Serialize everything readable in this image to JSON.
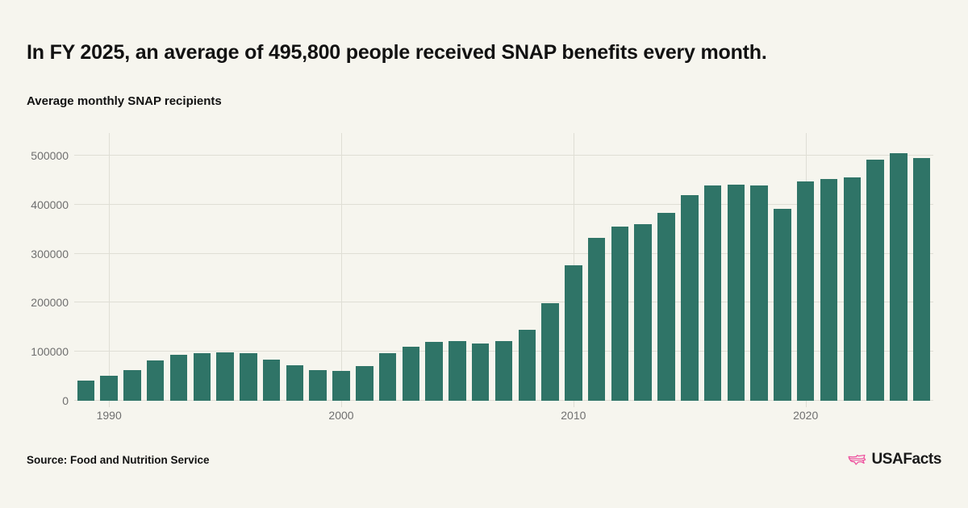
{
  "header": {
    "title": "In FY 2025, an average of 495,800 people received SNAP benefits every month.",
    "subtitle": "Average monthly SNAP recipients"
  },
  "footer": {
    "source": "Source: Food and Nutrition Service",
    "brand_text": "USAFacts",
    "brand_logo_icon": "usa-map-icon"
  },
  "colors": {
    "background": "#F6F5EE",
    "bar": "#2F7467",
    "grid": "#DFDED5",
    "axis_text": "#6F6F6F",
    "text": "#121212",
    "brand_pink": "#ED4F9D"
  },
  "chart_data": {
    "type": "bar",
    "title": "Average monthly SNAP recipients",
    "xlabel": "",
    "ylabel": "",
    "categories": [
      1989,
      1990,
      1991,
      1992,
      1993,
      1994,
      1995,
      1996,
      1997,
      1998,
      1999,
      2000,
      2001,
      2002,
      2003,
      2004,
      2005,
      2006,
      2007,
      2008,
      2009,
      2010,
      2011,
      2012,
      2013,
      2014,
      2015,
      2016,
      2017,
      2018,
      2019,
      2020,
      2021,
      2022,
      2023,
      2024,
      2025
    ],
    "values": [
      41000,
      51000,
      63000,
      82000,
      94000,
      97000,
      98500,
      97000,
      84000,
      72000,
      62000,
      61000,
      70000,
      97000,
      111000,
      120000,
      121000,
      117000,
      122000,
      144000,
      199000,
      277000,
      333000,
      355000,
      360000,
      383000,
      420000,
      439000,
      440000,
      439000,
      391000,
      448000,
      453000,
      455000,
      492000,
      505000,
      495800
    ],
    "ylim": [
      0,
      546000
    ],
    "yticks": [
      0,
      100000,
      200000,
      300000,
      400000,
      500000
    ],
    "xticks": [
      1990,
      2000,
      2010,
      2020
    ],
    "grid": true,
    "legend": false,
    "bar_color": "#2F7467"
  }
}
